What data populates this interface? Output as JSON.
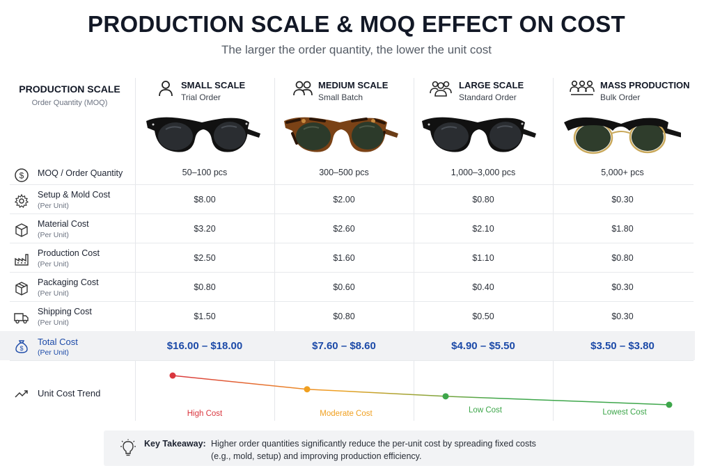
{
  "header": {
    "title": "PRODUCTION SCALE & MOQ EFFECT ON COST",
    "subtitle": "The larger the order quantity, the lower the unit cost"
  },
  "label_column": {
    "title": "PRODUCTION SCALE",
    "subtitle": "Order Quantity (MOQ)"
  },
  "columns": [
    {
      "name": "SMALL SCALE",
      "sub": "Trial Order",
      "icon": "single-person-icon",
      "frame": "black"
    },
    {
      "name": "MEDIUM SCALE",
      "sub": "Small Batch",
      "icon": "two-people-icon",
      "frame": "tortoise"
    },
    {
      "name": "LARGE SCALE",
      "sub": "Standard Order",
      "icon": "group-icon",
      "frame": "black"
    },
    {
      "name": "MASS PRODUCTION",
      "sub": "Bulk Order",
      "icon": "crowd-icon",
      "frame": "clubmaster"
    }
  ],
  "rows": [
    {
      "label": "MOQ / Order Quantity",
      "unit": "",
      "icon": "dollar-circle-icon",
      "values": [
        "50–100 pcs",
        "300–500 pcs",
        "1,000–3,000 pcs",
        "5,000+ pcs"
      ]
    },
    {
      "label": "Setup & Mold Cost",
      "unit": "(Per Unit)",
      "icon": "gear-icon",
      "values": [
        "$8.00",
        "$2.00",
        "$0.80",
        "$0.30"
      ]
    },
    {
      "label": "Material Cost",
      "unit": "(Per Unit)",
      "icon": "box-icon",
      "values": [
        "$3.20",
        "$2.60",
        "$2.10",
        "$1.80"
      ]
    },
    {
      "label": "Production Cost",
      "unit": "(Per Unit)",
      "icon": "factory-icon",
      "values": [
        "$2.50",
        "$1.60",
        "$1.10",
        "$0.80"
      ]
    },
    {
      "label": "Packaging Cost",
      "unit": "(Per Unit)",
      "icon": "package-icon",
      "values": [
        "$0.80",
        "$0.60",
        "$0.40",
        "$0.30"
      ]
    },
    {
      "label": "Shipping Cost",
      "unit": "(Per Unit)",
      "icon": "truck-icon",
      "values": [
        "$1.50",
        "$0.80",
        "$0.50",
        "$0.30"
      ]
    }
  ],
  "total": {
    "label": "Total Cost",
    "unit": "(Per Unit)",
    "icon": "money-bag-icon",
    "values": [
      "$16.00 – $18.00",
      "$7.60 – $8.60",
      "$4.90 – $5.50",
      "$3.50 – $3.80"
    ]
  },
  "trend": {
    "label": "Unit Cost Trend",
    "icon": "trend-down-icon",
    "points": [
      {
        "level": "High Cost",
        "color": "#d9363e",
        "relative": 1.0
      },
      {
        "level": "Moderate Cost",
        "color": "#f0a020",
        "relative": 0.53
      },
      {
        "level": "Low Cost",
        "color": "#3da64a",
        "relative": 0.29
      },
      {
        "level": "Lowest Cost",
        "color": "#3da64a",
        "relative": 0.0
      }
    ]
  },
  "takeaway": {
    "label": "Key Takeaway:",
    "line1": "Higher order quantities significantly reduce the per-unit cost by spreading fixed costs",
    "line2": "(e.g., mold, setup) and improving production efficiency.",
    "icon": "lightbulb-icon"
  },
  "colors": {
    "accent_blue": "#1c4aa8",
    "high": "#d9363e",
    "moderate": "#f0a020",
    "low": "#3da64a"
  }
}
